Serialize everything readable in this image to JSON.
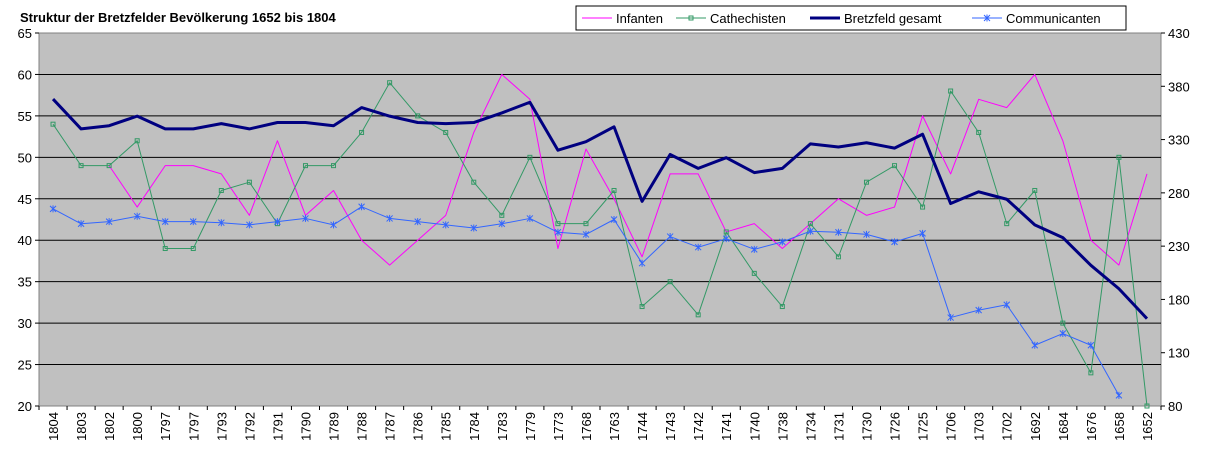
{
  "chart_data": {
    "type": "line",
    "title": "Struktur der Bretzfelder Bevölkerung 1652 bis 1804",
    "colors": {
      "plot_background": "#c0c0c0"
    },
    "x": [
      "1804",
      "1803",
      "1802",
      "1800",
      "1797",
      "1797",
      "1793",
      "1792",
      "1791",
      "1790",
      "1789",
      "1788",
      "1787",
      "1786",
      "1785",
      "1784",
      "1783",
      "1779",
      "1773",
      "1768",
      "1763",
      "1744",
      "1743",
      "1742",
      "1741",
      "1740",
      "1738",
      "1734",
      "1731",
      "1730",
      "1726",
      "1725",
      "1706",
      "1703",
      "1702",
      "1692",
      "1684",
      "1676",
      "1658",
      "1652"
    ],
    "y_left": {
      "min": 20,
      "max": 65,
      "ticks": [
        20,
        25,
        30,
        35,
        40,
        45,
        50,
        55,
        60,
        65
      ]
    },
    "y_right": {
      "min": 80,
      "max": 430,
      "ticks": [
        80,
        130,
        180,
        230,
        280,
        330,
        380,
        430
      ]
    },
    "legend_position": "top-right",
    "grid": "horizontal",
    "series": [
      {
        "name": "Infanten",
        "axis": "left",
        "color": "#ff00ff",
        "marker": "none",
        "width": 1,
        "values": [
          null,
          null,
          49,
          44,
          49,
          49,
          48,
          43,
          52,
          43,
          46,
          40,
          37,
          40,
          43,
          53,
          60,
          57,
          39,
          51,
          45,
          38,
          48,
          48,
          41,
          42,
          39,
          42,
          45,
          43,
          44,
          55,
          48,
          57,
          56,
          60,
          52,
          40,
          37,
          48
        ]
      },
      {
        "name": "Cathechisten",
        "axis": "left",
        "color": "#339966",
        "marker": "square",
        "width": 1,
        "values": [
          54,
          49,
          49,
          52,
          39,
          39,
          46,
          47,
          42,
          49,
          49,
          53,
          59,
          55,
          53,
          47,
          43,
          50,
          42,
          42,
          46,
          32,
          35,
          31,
          41,
          36,
          32,
          42,
          38,
          47,
          49,
          44,
          58,
          53,
          42,
          46,
          30,
          24,
          50,
          20
        ]
      },
      {
        "name": "Bretzfeld gesamt",
        "axis": "right",
        "color": "#000080",
        "marker": "none",
        "width": 3,
        "values": [
          368,
          340,
          343,
          352,
          340,
          340,
          345,
          340,
          346,
          346,
          343,
          360,
          352,
          346,
          345,
          346,
          355,
          365,
          320,
          328,
          342,
          272,
          316,
          303,
          313,
          299,
          303,
          326,
          323,
          327,
          322,
          335,
          270,
          281,
          274,
          250,
          238,
          212,
          190,
          162
        ]
      },
      {
        "name": "Communicanten",
        "axis": "right",
        "color": "#3366ff",
        "marker": "star",
        "width": 1,
        "values": [
          265,
          251,
          253,
          258,
          253,
          253,
          252,
          250,
          253,
          256,
          250,
          267,
          256,
          253,
          250,
          247,
          251,
          256,
          243,
          241,
          255,
          214,
          239,
          229,
          237,
          227,
          234,
          244,
          243,
          241,
          234,
          242,
          163,
          170,
          175,
          137,
          148,
          137,
          90,
          null
        ]
      }
    ]
  }
}
